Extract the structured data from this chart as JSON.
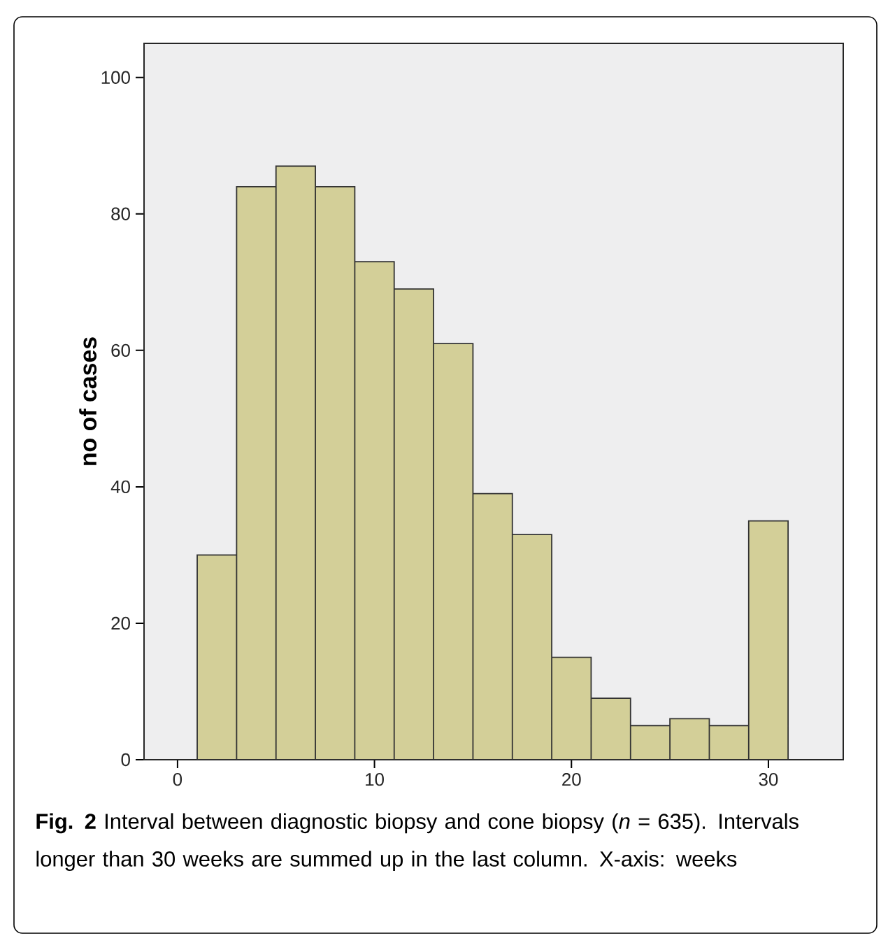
{
  "chart_data": {
    "type": "histogram",
    "ylabel": "no of cases",
    "bins": [
      1,
      3,
      5,
      7,
      9,
      11,
      13,
      15,
      17,
      19,
      21,
      23,
      25,
      27,
      29,
      31
    ],
    "values": [
      30,
      84,
      87,
      84,
      73,
      69,
      61,
      39,
      33,
      15,
      9,
      5,
      6,
      5,
      35
    ],
    "color": "#d3cf98",
    "xlim": [
      -1.7,
      33.8
    ],
    "ylim": [
      0,
      105
    ],
    "xticks": [
      0,
      10,
      20,
      30
    ],
    "yticks": [
      0,
      20,
      40,
      60,
      80,
      100
    ],
    "grid": false,
    "annotations": [
      "**Fig. 2** Interval between diagnostic biopsy and cone biopsy (*n* = 635). Intervals longer than 30 weeks are summed up in the last column. X-axis: weeks"
    ]
  }
}
